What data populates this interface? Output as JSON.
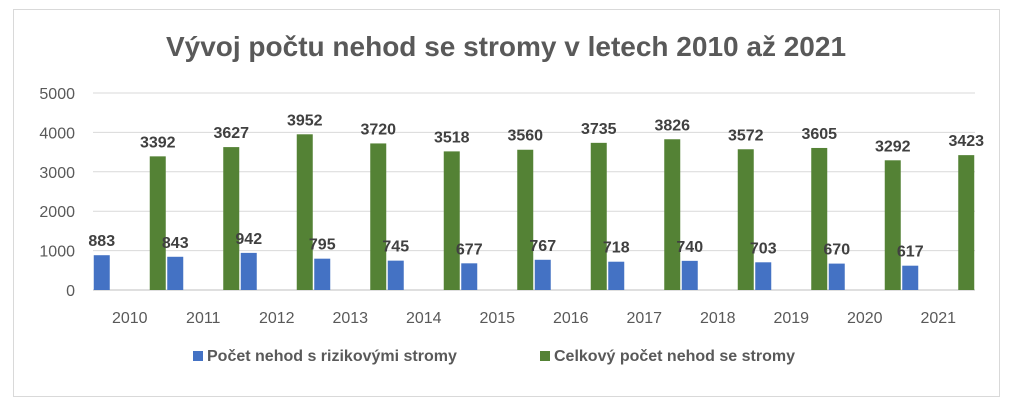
{
  "chart_data": {
    "type": "bar",
    "title": "Vývoj počtu nehod se stromy v letech 2010 až 2021",
    "xlabel": "",
    "ylabel": "",
    "ylim": [
      0,
      5000
    ],
    "yticks": [
      0,
      1000,
      2000,
      3000,
      4000,
      5000
    ],
    "grid": true,
    "legend_position": "bottom",
    "categories": [
      "2010",
      "2011",
      "2012",
      "2013",
      "2014",
      "2015",
      "2016",
      "2017",
      "2018",
      "2019",
      "2020",
      "2021"
    ],
    "series": [
      {
        "name": "Počet nehod s rizikovými stromy",
        "color": "#4472c4",
        "values": [
          883,
          843,
          942,
          795,
          745,
          677,
          767,
          718,
          740,
          703,
          670,
          617
        ]
      },
      {
        "name": "Celkový počet nehod se stromy",
        "color": "#548235",
        "values": [
          3392,
          3627,
          3952,
          3720,
          3518,
          3560,
          3735,
          3826,
          3572,
          3605,
          3292,
          3423
        ]
      }
    ]
  }
}
